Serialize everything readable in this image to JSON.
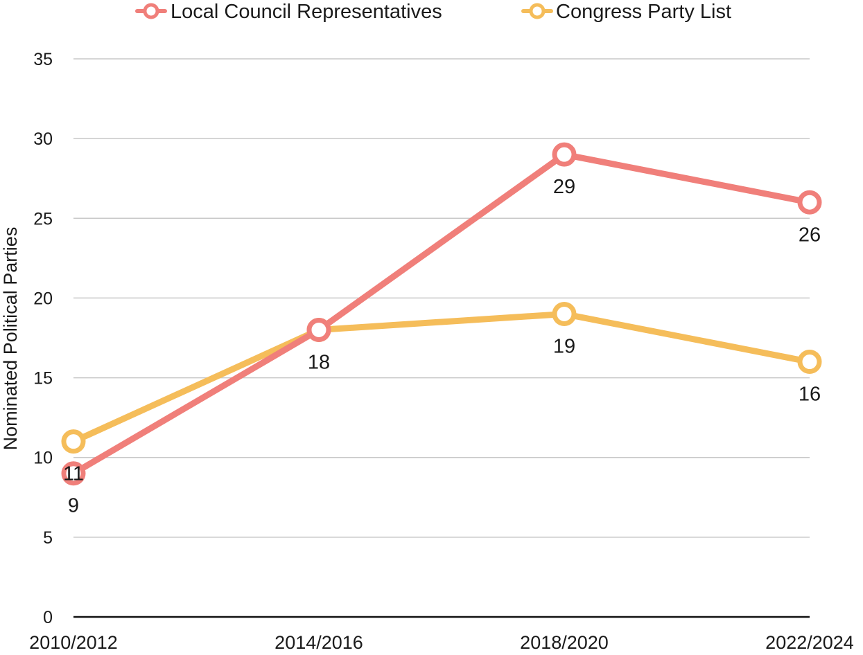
{
  "chart_data": {
    "type": "line",
    "title": "",
    "xlabel": "",
    "ylabel": "Nominated Political Parties",
    "ylim": [
      0,
      35
    ],
    "yticks": [
      0,
      5,
      10,
      15,
      20,
      25,
      30,
      35
    ],
    "grid": true,
    "legend_position": "top-center",
    "categories": [
      "2010/2012",
      "2014/2016",
      "2018/2020",
      "2022/2024"
    ],
    "series": [
      {
        "name": "Local Council Representatives",
        "values": [
          9,
          18,
          29,
          26
        ],
        "labels": [
          "9",
          "18",
          "29",
          "26"
        ],
        "color": "#f07f7a",
        "marker": "hollow-circle"
      },
      {
        "name": "Congress Party List",
        "values": [
          11,
          18,
          19,
          16
        ],
        "labels": [
          "11",
          "",
          "19",
          "16"
        ],
        "color": "#f5bd5a",
        "marker": "hollow-circle"
      }
    ]
  }
}
